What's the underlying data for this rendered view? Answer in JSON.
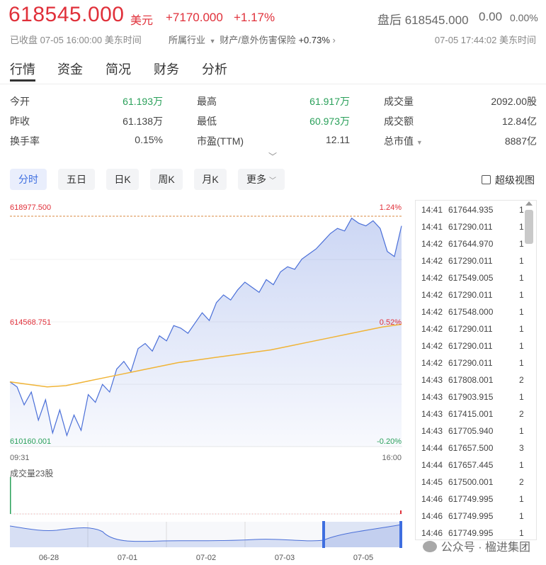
{
  "quote": {
    "price": "618545.000",
    "unit": "美元",
    "change": "+7170.000",
    "change_pct": "+1.17%",
    "after_hours_label": "盘后 618545.000",
    "after_hours_change": "0.00",
    "after_hours_pct": "0.00%",
    "closed_status": "已收盘 07-05 16:00:00 美东时间",
    "industry_label": "所属行业",
    "industry_name": "财产/意外伤害保险",
    "industry_change": "+0.73%",
    "after_hours_time": "07-05 17:44:02 美东时间"
  },
  "tabs": [
    "行情",
    "资金",
    "简况",
    "财务",
    "分析"
  ],
  "stats": [
    {
      "label": "今开",
      "value": "61.193万"
    },
    {
      "label": "昨收",
      "value": "61.138万"
    },
    {
      "label": "换手率",
      "value": "0.15%"
    },
    {
      "label": "最高",
      "value": "61.917万"
    },
    {
      "label": "最低",
      "value": "60.973万"
    },
    {
      "label": "市盈(TTM)",
      "value": "12.11"
    },
    {
      "label": "成交量",
      "value": "2092.00股"
    },
    {
      "label": "成交额",
      "value": "12.84亿"
    },
    {
      "label": "总市值",
      "value": "8887亿"
    }
  ],
  "timeframes": [
    "分时",
    "五日",
    "日K",
    "周K",
    "月K",
    "更多"
  ],
  "super_view": "超级视图",
  "chart_data": {
    "type": "line",
    "title": "",
    "axis": {
      "y_left_labels": [
        "618977.500",
        "614568.751",
        "610160.001"
      ],
      "y_right_labels": [
        "1.24%",
        "0.52%",
        "-0.20%"
      ],
      "ylim": [
        610160.001,
        618977.5
      ],
      "x_start": "09:31",
      "x_end": "16:00"
    },
    "series": [
      {
        "values": [
          612500,
          612300,
          611600,
          612100,
          611000,
          611800,
          610500,
          611400,
          610400,
          611200,
          610600,
          612000,
          611700,
          612400,
          612100,
          613000,
          613300,
          612900,
          613800,
          614000,
          613700,
          614300,
          614100,
          614700,
          614600,
          614400,
          614800,
          615200,
          614900,
          615600,
          615900,
          615700,
          616100,
          616400,
          616200,
          616000,
          616500,
          616300,
          616800,
          617000,
          616900,
          617300,
          617500,
          617700,
          618000,
          618300,
          618500,
          618400,
          618900,
          618700,
          618600,
          618800,
          618500,
          617600,
          617400,
          618600
        ]
      },
      {
        "values": [
          612500,
          612400,
          612300,
          612350,
          612500,
          612650,
          612800,
          612950,
          613100,
          613250,
          613350,
          613450,
          613550,
          613650,
          613750,
          613900,
          614050,
          614200,
          614350,
          614500,
          614650,
          614750
        ]
      }
    ]
  },
  "volume": {
    "label": "成交量23股"
  },
  "navigator": {
    "dates": [
      "06-28",
      "07-01",
      "07-02",
      "07-03",
      "07-05"
    ]
  },
  "ticks": [
    {
      "time": "14:41",
      "price": "617644.935",
      "vol": "1"
    },
    {
      "time": "14:41",
      "price": "617290.011",
      "vol": "1"
    },
    {
      "time": "14:42",
      "price": "617644.970",
      "vol": "1"
    },
    {
      "time": "14:42",
      "price": "617290.011",
      "vol": "1"
    },
    {
      "time": "14:42",
      "price": "617549.005",
      "vol": "1"
    },
    {
      "time": "14:42",
      "price": "617290.011",
      "vol": "1"
    },
    {
      "time": "14:42",
      "price": "617548.000",
      "vol": "1"
    },
    {
      "time": "14:42",
      "price": "617290.011",
      "vol": "1"
    },
    {
      "time": "14:42",
      "price": "617290.011",
      "vol": "1"
    },
    {
      "time": "14:42",
      "price": "617290.011",
      "vol": "1"
    },
    {
      "time": "14:43",
      "price": "617808.001",
      "vol": "2"
    },
    {
      "time": "14:43",
      "price": "617903.915",
      "vol": "1"
    },
    {
      "time": "14:43",
      "price": "617415.001",
      "vol": "2"
    },
    {
      "time": "14:43",
      "price": "617705.940",
      "vol": "1"
    },
    {
      "time": "14:44",
      "price": "617657.500",
      "vol": "3"
    },
    {
      "time": "14:44",
      "price": "617657.445",
      "vol": "1"
    },
    {
      "time": "14:45",
      "price": "617500.001",
      "vol": "2"
    },
    {
      "time": "14:46",
      "price": "617749.995",
      "vol": "1"
    },
    {
      "time": "14:46",
      "price": "617749.995",
      "vol": "1"
    },
    {
      "time": "14:46",
      "price": "617749.995",
      "vol": "1"
    }
  ],
  "watermark": "公众号 · 楹进集团",
  "colors": {
    "up": "#e0303a",
    "down": "#2aa05a",
    "line": "#4a6fd8",
    "avg": "#f0b437"
  }
}
